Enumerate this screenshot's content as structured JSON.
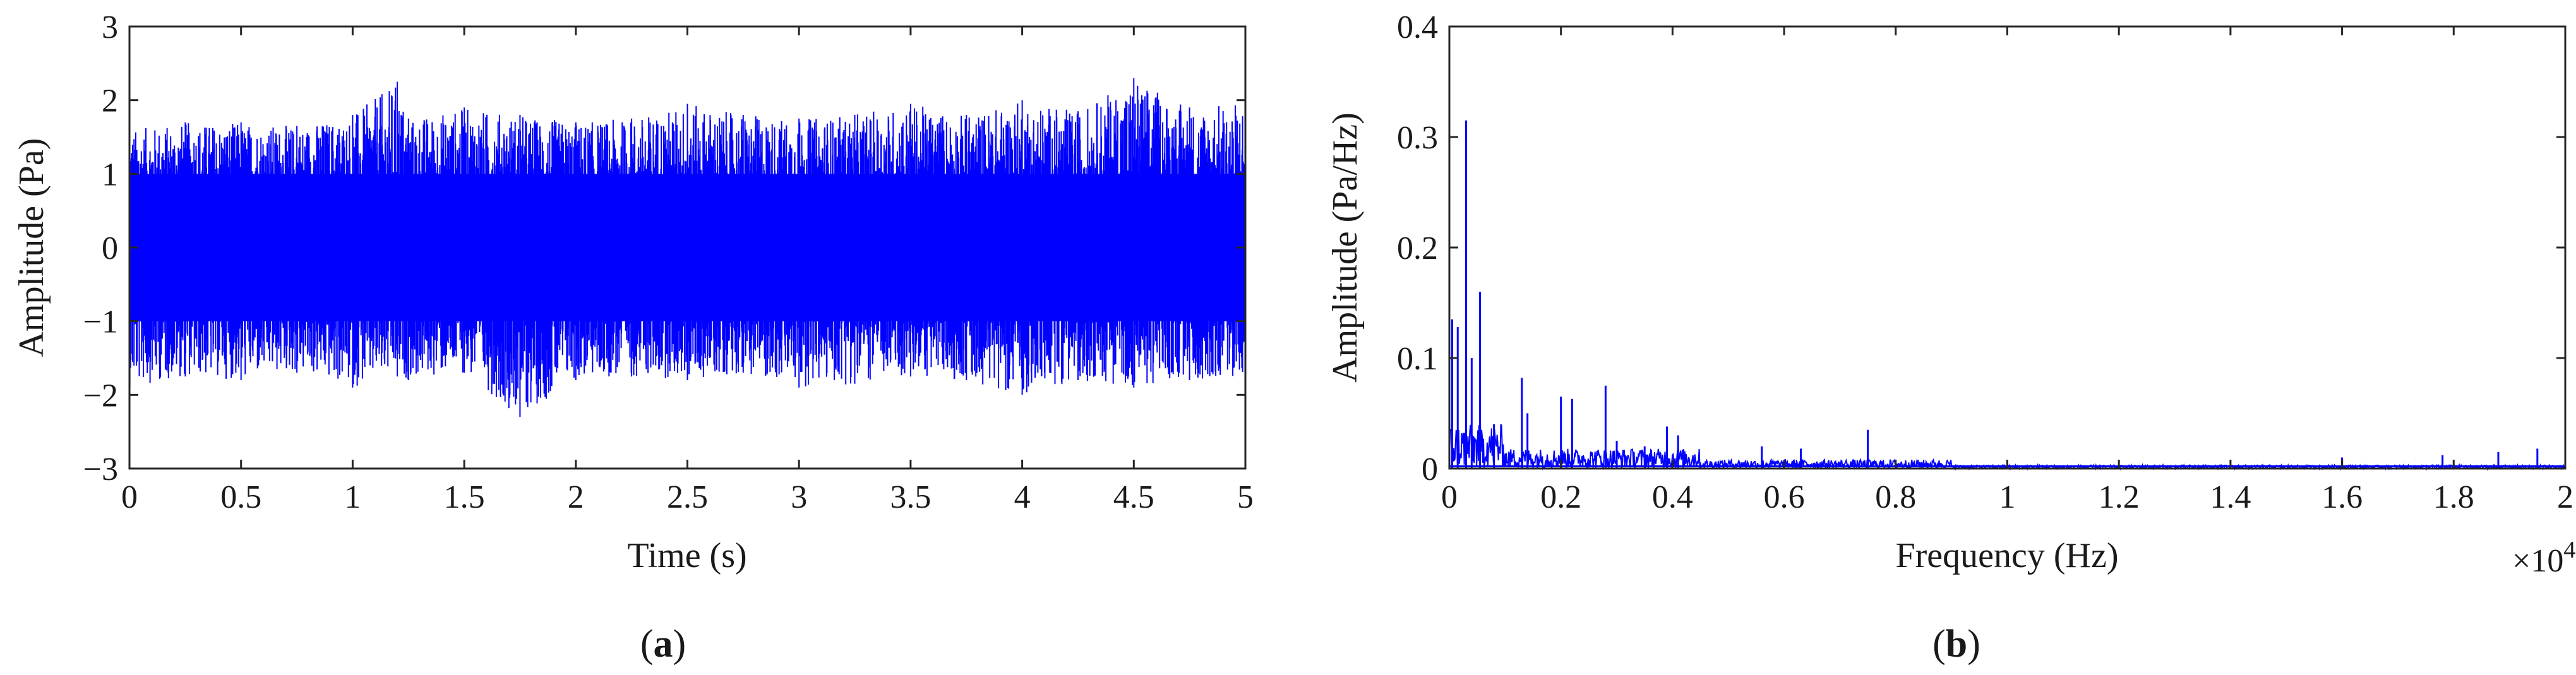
{
  "chart_data": [
    {
      "id": "a",
      "type": "line",
      "title": "",
      "xlabel": "Time (s)",
      "ylabel": "Amplitude (Pa)",
      "xlim": [
        0,
        5
      ],
      "ylim": [
        -3,
        3
      ],
      "xticks": [
        0,
        0.5,
        1,
        1.5,
        2,
        2.5,
        3,
        3.5,
        4,
        4.5,
        5
      ],
      "xtick_labels": [
        "0",
        "0.5",
        "1",
        "1.5",
        "2",
        "2.5",
        "3",
        "3.5",
        "4",
        "4.5",
        "5"
      ],
      "yticks": [
        -3,
        -2,
        -1,
        0,
        1,
        2,
        3
      ],
      "ytick_labels": [
        "−3",
        "−2",
        "−1",
        "0",
        "1",
        "2",
        "3"
      ],
      "grid": false,
      "line_color": "#0000ff",
      "series": [
        {
          "x": [
            0,
            0.25,
            0.5,
            0.75,
            1,
            1.2,
            1.25,
            1.5,
            1.75,
            2,
            2.25,
            2.5,
            2.75,
            3,
            3.25,
            3.5,
            3.75,
            4,
            4.25,
            4.5,
            4.75,
            5
          ],
          "envelope_upper": [
            1.6,
            1.7,
            1.7,
            1.65,
            1.8,
            2.25,
            1.75,
            1.9,
            1.8,
            1.7,
            1.75,
            1.95,
            1.8,
            1.75,
            1.8,
            1.95,
            1.8,
            2.0,
            1.85,
            2.3,
            1.9,
            2.0
          ],
          "envelope_lower": [
            -1.9,
            -1.75,
            -1.8,
            -1.7,
            -1.9,
            -1.75,
            -1.8,
            -1.7,
            -2.3,
            -1.8,
            -1.75,
            -1.8,
            -1.7,
            -1.9,
            -1.85,
            -1.75,
            -1.8,
            -2.0,
            -1.8,
            -1.9,
            -1.8,
            -1.75
          ]
        }
      ],
      "caption": "a"
    },
    {
      "id": "b",
      "type": "line",
      "title": "",
      "xlabel": "Frequency (Hz)",
      "ylabel": "Amplitude (Pa/Hz)",
      "xlim": [
        0,
        2
      ],
      "ylim": [
        0,
        0.4
      ],
      "x_multiplier_label": "×10",
      "x_multiplier_exponent": "4",
      "xticks": [
        0,
        0.2,
        0.4,
        0.6,
        0.8,
        1,
        1.2,
        1.4,
        1.6,
        1.8,
        2
      ],
      "xtick_labels": [
        "0",
        "0.2",
        "0.4",
        "0.6",
        "0.8",
        "1",
        "1.2",
        "1.4",
        "1.6",
        "1.8",
        "2"
      ],
      "yticks": [
        0,
        0.1,
        0.2,
        0.3,
        0.4
      ],
      "ytick_labels": [
        "0",
        "0.1",
        "0.2",
        "0.3",
        "0.4"
      ],
      "grid": false,
      "line_color": "#0000ff",
      "series": [
        {
          "peaks": [
            {
              "x": 0.005,
              "y": 0.135
            },
            {
              "x": 0.015,
              "y": 0.128
            },
            {
              "x": 0.03,
              "y": 0.315
            },
            {
              "x": 0.04,
              "y": 0.1
            },
            {
              "x": 0.055,
              "y": 0.16
            },
            {
              "x": 0.08,
              "y": 0.04
            },
            {
              "x": 0.13,
              "y": 0.082
            },
            {
              "x": 0.14,
              "y": 0.05
            },
            {
              "x": 0.2,
              "y": 0.065
            },
            {
              "x": 0.22,
              "y": 0.063
            },
            {
              "x": 0.28,
              "y": 0.075
            },
            {
              "x": 0.3,
              "y": 0.025
            },
            {
              "x": 0.35,
              "y": 0.02
            },
            {
              "x": 0.39,
              "y": 0.038
            },
            {
              "x": 0.41,
              "y": 0.03
            },
            {
              "x": 0.56,
              "y": 0.02
            },
            {
              "x": 0.63,
              "y": 0.018
            },
            {
              "x": 0.75,
              "y": 0.035
            },
            {
              "x": 1.6,
              "y": 0.01
            },
            {
              "x": 1.78,
              "y": 0.012
            },
            {
              "x": 1.88,
              "y": 0.015
            },
            {
              "x": 1.95,
              "y": 0.018
            }
          ]
        }
      ],
      "caption": "b"
    }
  ]
}
